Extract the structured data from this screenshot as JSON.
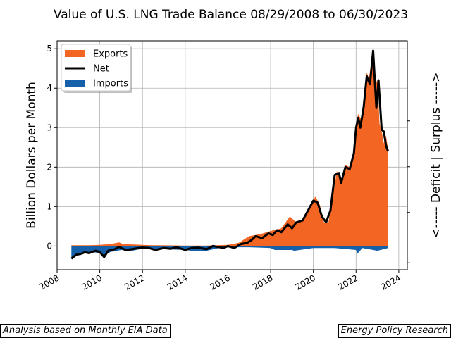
{
  "chart_data": {
    "type": "area",
    "title": "Value of U.S. LNG Trade Balance 08/29/2008 to 06/30/2023",
    "ylabel": "Billion Dollars per Month",
    "right_label": "<----- Deficit | Surplus ----->",
    "xlim": [
      2008.0,
      2024.4
    ],
    "ylim": [
      -0.6,
      5.2
    ],
    "x_ticks": [
      2008,
      2010,
      2012,
      2014,
      2016,
      2018,
      2020,
      2022,
      2024
    ],
    "y_ticks": [
      0,
      1,
      2,
      3,
      4,
      5
    ],
    "grid": true,
    "legend_position": "top-left",
    "colors": {
      "exports": "#f26522",
      "net": "#000000",
      "imports": "#1560a8"
    },
    "series": [
      {
        "name": "Exports",
        "kind": "area",
        "points": [
          [
            2008.67,
            0.02
          ],
          [
            2009.0,
            0.02
          ],
          [
            2009.5,
            0.02
          ],
          [
            2010.0,
            0.03
          ],
          [
            2010.5,
            0.05
          ],
          [
            2010.9,
            0.09
          ],
          [
            2011.1,
            0.05
          ],
          [
            2011.5,
            0.04
          ],
          [
            2012.0,
            0.03
          ],
          [
            2012.5,
            0.02
          ],
          [
            2013.0,
            0.02
          ],
          [
            2014.0,
            0.01
          ],
          [
            2015.0,
            0.01
          ],
          [
            2016.0,
            0.03
          ],
          [
            2016.5,
            0.08
          ],
          [
            2017.0,
            0.25
          ],
          [
            2017.5,
            0.3
          ],
          [
            2018.0,
            0.38
          ],
          [
            2018.5,
            0.45
          ],
          [
            2018.9,
            0.75
          ],
          [
            2019.2,
            0.6
          ],
          [
            2019.6,
            0.7
          ],
          [
            2019.9,
            1.1
          ],
          [
            2020.1,
            1.25
          ],
          [
            2020.3,
            1.05
          ],
          [
            2020.5,
            0.6
          ],
          [
            2020.7,
            0.58
          ],
          [
            2020.9,
            1.2
          ],
          [
            2021.1,
            1.9
          ],
          [
            2021.3,
            1.65
          ],
          [
            2021.5,
            2.05
          ],
          [
            2021.7,
            2.0
          ],
          [
            2021.9,
            2.4
          ],
          [
            2022.0,
            3.1
          ],
          [
            2022.1,
            3.35
          ],
          [
            2022.25,
            3.2
          ],
          [
            2022.4,
            3.8
          ],
          [
            2022.5,
            4.4
          ],
          [
            2022.6,
            4.25
          ],
          [
            2022.7,
            4.6
          ],
          [
            2022.8,
            4.95
          ],
          [
            2022.9,
            4.1
          ],
          [
            2023.0,
            4.2
          ],
          [
            2023.1,
            3.1
          ],
          [
            2023.2,
            2.9
          ],
          [
            2023.3,
            2.6
          ],
          [
            2023.4,
            2.8
          ],
          [
            2023.5,
            2.45
          ]
        ]
      },
      {
        "name": "Imports",
        "kind": "area",
        "points": [
          [
            2008.67,
            -0.3
          ],
          [
            2009.0,
            -0.22
          ],
          [
            2009.3,
            -0.18
          ],
          [
            2009.6,
            -0.15
          ],
          [
            2010.0,
            -0.18
          ],
          [
            2010.2,
            -0.25
          ],
          [
            2010.5,
            -0.15
          ],
          [
            2011.0,
            -0.1
          ],
          [
            2011.5,
            -0.12
          ],
          [
            2012.0,
            -0.07
          ],
          [
            2013.0,
            -0.08
          ],
          [
            2014.0,
            -0.1
          ],
          [
            2014.3,
            -0.12
          ],
          [
            2015.0,
            -0.12
          ],
          [
            2015.5,
            -0.06
          ],
          [
            2016.0,
            -0.03
          ],
          [
            2017.0,
            -0.03
          ],
          [
            2018.0,
            -0.05
          ],
          [
            2018.2,
            -0.1
          ],
          [
            2019.0,
            -0.1
          ],
          [
            2019.1,
            -0.12
          ],
          [
            2020.0,
            -0.05
          ],
          [
            2021.0,
            -0.05
          ],
          [
            2022.0,
            -0.1
          ],
          [
            2022.05,
            -0.2
          ],
          [
            2022.3,
            -0.05
          ],
          [
            2023.0,
            -0.12
          ],
          [
            2023.5,
            -0.05
          ]
        ]
      },
      {
        "name": "Net",
        "kind": "line",
        "points": [
          [
            2008.67,
            -0.32
          ],
          [
            2008.9,
            -0.22
          ],
          [
            2009.1,
            -0.2
          ],
          [
            2009.3,
            -0.16
          ],
          [
            2009.5,
            -0.18
          ],
          [
            2009.8,
            -0.12
          ],
          [
            2010.0,
            -0.15
          ],
          [
            2010.2,
            -0.28
          ],
          [
            2010.4,
            -0.12
          ],
          [
            2010.7,
            -0.08
          ],
          [
            2010.9,
            -0.02
          ],
          [
            2011.2,
            -0.1
          ],
          [
            2011.5,
            -0.08
          ],
          [
            2011.8,
            -0.05
          ],
          [
            2012.0,
            -0.04
          ],
          [
            2012.3,
            -0.05
          ],
          [
            2012.6,
            -0.1
          ],
          [
            2013.0,
            -0.05
          ],
          [
            2013.3,
            -0.07
          ],
          [
            2013.6,
            -0.03
          ],
          [
            2014.0,
            -0.1
          ],
          [
            2014.3,
            -0.05
          ],
          [
            2014.6,
            -0.04
          ],
          [
            2015.0,
            -0.08
          ],
          [
            2015.3,
            0.0
          ],
          [
            2015.5,
            -0.02
          ],
          [
            2015.8,
            -0.05
          ],
          [
            2016.0,
            0.0
          ],
          [
            2016.3,
            -0.05
          ],
          [
            2016.6,
            0.05
          ],
          [
            2016.9,
            0.08
          ],
          [
            2017.1,
            0.15
          ],
          [
            2017.3,
            0.25
          ],
          [
            2017.6,
            0.2
          ],
          [
            2017.9,
            0.32
          ],
          [
            2018.1,
            0.28
          ],
          [
            2018.3,
            0.4
          ],
          [
            2018.5,
            0.35
          ],
          [
            2018.8,
            0.55
          ],
          [
            2019.0,
            0.45
          ],
          [
            2019.2,
            0.6
          ],
          [
            2019.5,
            0.65
          ],
          [
            2019.8,
            0.95
          ],
          [
            2020.0,
            1.15
          ],
          [
            2020.2,
            1.1
          ],
          [
            2020.4,
            0.75
          ],
          [
            2020.6,
            0.6
          ],
          [
            2020.8,
            0.9
          ],
          [
            2021.0,
            1.8
          ],
          [
            2021.2,
            1.85
          ],
          [
            2021.3,
            1.6
          ],
          [
            2021.5,
            2.0
          ],
          [
            2021.7,
            1.95
          ],
          [
            2021.9,
            2.35
          ],
          [
            2022.0,
            3.0
          ],
          [
            2022.1,
            3.25
          ],
          [
            2022.2,
            3.0
          ],
          [
            2022.35,
            3.5
          ],
          [
            2022.5,
            4.3
          ],
          [
            2022.65,
            4.1
          ],
          [
            2022.8,
            4.95
          ],
          [
            2022.95,
            3.5
          ],
          [
            2023.05,
            4.2
          ],
          [
            2023.2,
            2.95
          ],
          [
            2023.3,
            2.9
          ],
          [
            2023.4,
            2.55
          ],
          [
            2023.5,
            2.4
          ]
        ]
      }
    ]
  },
  "footer": {
    "left_note": "Analysis based on Monthly EIA Data",
    "right_note": "Energy Policy Research"
  }
}
